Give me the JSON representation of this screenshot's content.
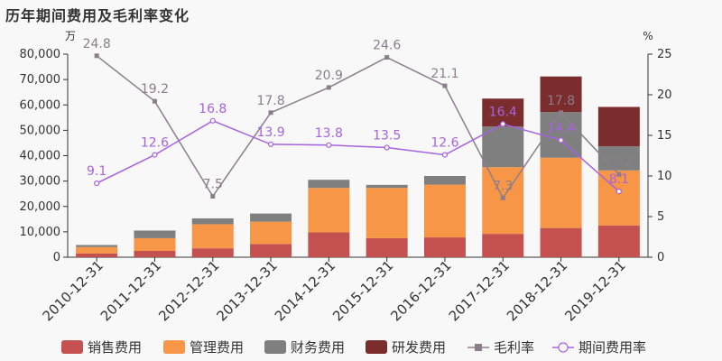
{
  "title": "历年期间费用及毛利率变化",
  "chart_data": {
    "type": "bar",
    "stacked": true,
    "title": "历年期间费用及毛利率变化",
    "y_left_unit": "万",
    "y_right_unit": "%",
    "ylim_left": [
      0,
      80000
    ],
    "ylim_right": [
      0,
      25
    ],
    "y_left_ticks": [
      "0",
      "10,000",
      "20,000",
      "30,000",
      "40,000",
      "50,000",
      "60,000",
      "70,000",
      "80,000"
    ],
    "y_right_ticks": [
      "0",
      "5",
      "10",
      "15",
      "20",
      "25"
    ],
    "categories": [
      "2010-12-31",
      "2011-12-31",
      "2012-12-31",
      "2013-12-31",
      "2014-12-31",
      "2015-12-31",
      "2016-12-31",
      "2017-12-31",
      "2018-12-31",
      "2019-12-31"
    ],
    "series": [
      {
        "name": "销售费用",
        "type": "bar",
        "axis": "left",
        "color": "#c4504f",
        "values": [
          1500,
          2500,
          3500,
          5200,
          9800,
          7500,
          7800,
          9200,
          11500,
          12500
        ]
      },
      {
        "name": "管理费用",
        "type": "bar",
        "axis": "left",
        "color": "#f79646",
        "values": [
          2500,
          5000,
          9500,
          8800,
          17500,
          19800,
          20800,
          26300,
          27700,
          21700
        ]
      },
      {
        "name": "财务费用",
        "type": "bar",
        "axis": "left",
        "color": "#7f7f7f",
        "values": [
          800,
          3000,
          2300,
          3200,
          3200,
          1200,
          3400,
          16000,
          18000,
          9500
        ]
      },
      {
        "name": "研发费用",
        "type": "bar",
        "axis": "left",
        "color": "#7b2c2c",
        "values": [
          0,
          0,
          0,
          0,
          0,
          0,
          0,
          11000,
          14000,
          15500
        ]
      },
      {
        "name": "毛利率",
        "type": "line",
        "axis": "right",
        "color": "#8c7d8c",
        "marker": "square",
        "values": [
          24.8,
          19.2,
          7.5,
          17.8,
          20.9,
          24.6,
          21.1,
          7.3,
          17.8,
          10.2
        ]
      },
      {
        "name": "期间费用率",
        "type": "line",
        "axis": "right",
        "color": "#a663e0",
        "marker": "circle",
        "values": [
          9.1,
          12.6,
          16.8,
          13.9,
          13.8,
          13.5,
          12.6,
          16.4,
          14.4,
          8.1
        ]
      }
    ],
    "legend_position": "bottom"
  }
}
